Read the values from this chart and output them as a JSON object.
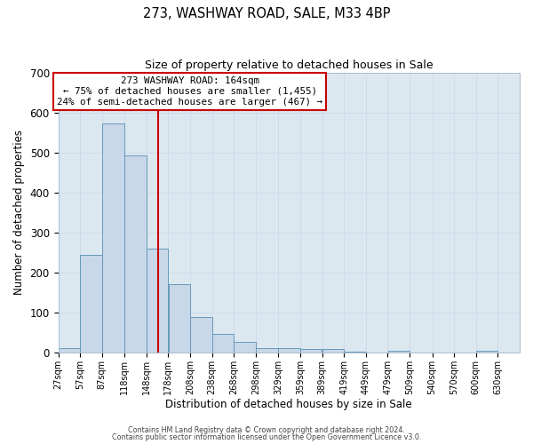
{
  "title": "273, WASHWAY ROAD, SALE, M33 4BP",
  "subtitle": "Size of property relative to detached houses in Sale",
  "xlabel": "Distribution of detached houses by size in Sale",
  "ylabel": "Number of detached properties",
  "bar_left_edges": [
    27,
    57,
    87,
    118,
    148,
    178,
    208,
    238,
    268,
    298,
    329,
    359,
    389,
    419,
    449,
    479,
    509,
    540,
    570,
    600
  ],
  "bar_heights": [
    12,
    244,
    573,
    492,
    260,
    170,
    88,
    47,
    27,
    12,
    10,
    9,
    8,
    3,
    0,
    5,
    0,
    0,
    0,
    5
  ],
  "bar_widths": [
    30,
    30,
    31,
    30,
    30,
    30,
    30,
    30,
    30,
    31,
    30,
    30,
    30,
    30,
    30,
    30,
    31,
    30,
    30,
    30
  ],
  "tick_labels": [
    "27sqm",
    "57sqm",
    "87sqm",
    "118sqm",
    "148sqm",
    "178sqm",
    "208sqm",
    "238sqm",
    "268sqm",
    "298sqm",
    "329sqm",
    "359sqm",
    "389sqm",
    "419sqm",
    "449sqm",
    "479sqm",
    "509sqm",
    "540sqm",
    "570sqm",
    "600sqm",
    "630sqm"
  ],
  "tick_positions": [
    27,
    57,
    87,
    118,
    148,
    178,
    208,
    238,
    268,
    298,
    329,
    359,
    389,
    419,
    449,
    479,
    509,
    540,
    570,
    600,
    630
  ],
  "bar_color": "#c8d8e8",
  "bar_edge_color": "#6699bb",
  "vline_x": 164,
  "vline_color": "#cc0000",
  "ylim": [
    0,
    700
  ],
  "yticks": [
    0,
    100,
    200,
    300,
    400,
    500,
    600,
    700
  ],
  "annotation_title": "273 WASHWAY ROAD: 164sqm",
  "annotation_line1": "← 75% of detached houses are smaller (1,455)",
  "annotation_line2": "24% of semi-detached houses are larger (467) →",
  "annotation_box_color": "#ffffff",
  "annotation_box_edge_color": "#cc0000",
  "footer_line1": "Contains HM Land Registry data © Crown copyright and database right 2024.",
  "footer_line2": "Contains public sector information licensed under the Open Government Licence v3.0.",
  "grid_color": "#ccd9e8",
  "background_color": "#dce8f0",
  "fig_background_color": "#ffffff"
}
